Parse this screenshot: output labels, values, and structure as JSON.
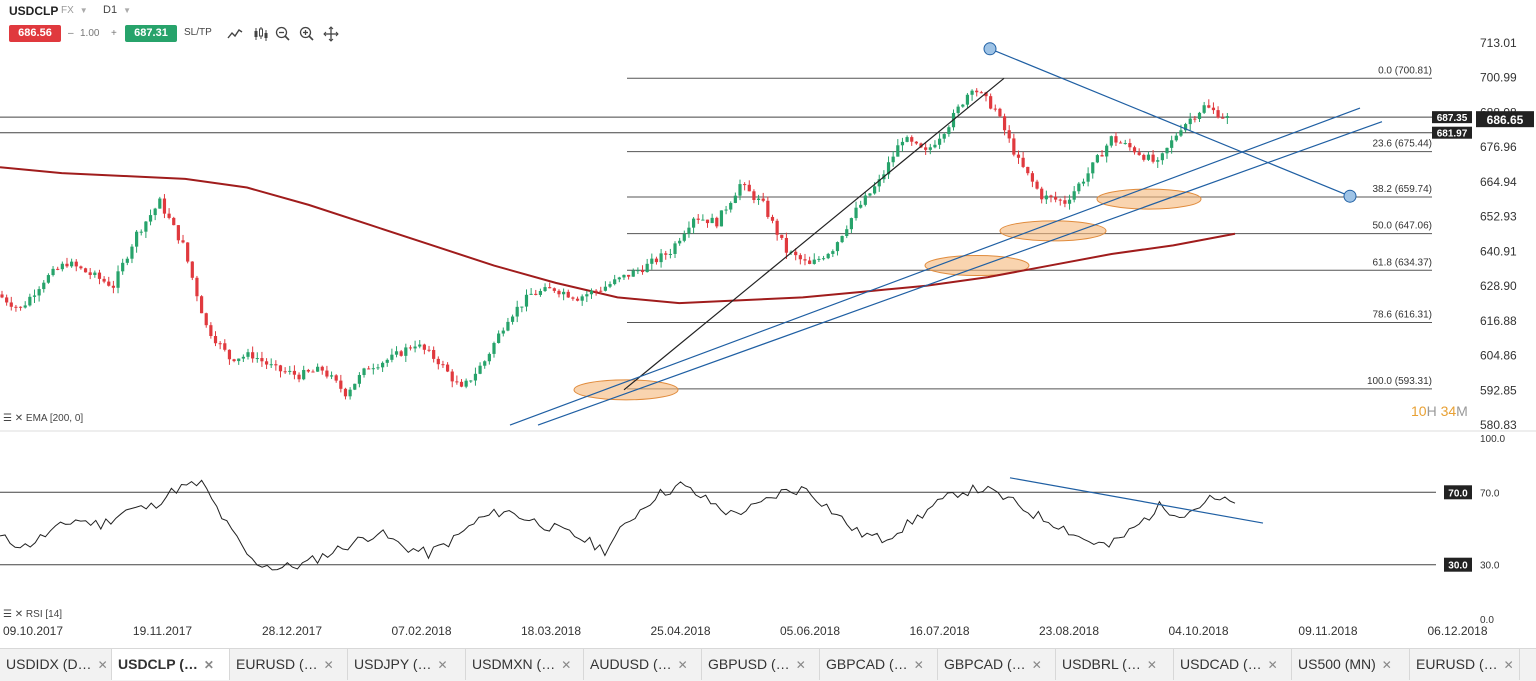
{
  "header": {
    "symbol": "USDCLP",
    "market": "FX",
    "timeframe": "D1",
    "sell_price": "686.56",
    "qty_minus": "–",
    "qty": "1.00",
    "qty_plus": "+",
    "buy_price": "687.31",
    "sltp_label": "SL/TP",
    "tools": [
      "line-chart-icon",
      "candles-icon",
      "zoom-out-icon",
      "zoom-in-icon",
      "crosshair-icon"
    ]
  },
  "countdown": {
    "h": "10",
    "h_unit": "H",
    "m": "34",
    "m_unit": "M"
  },
  "indicators": {
    "ema_label": "EMA [200, 0]",
    "rsi_label": "RSI [14]"
  },
  "tabs": [
    "USDIDX (D…",
    "USDCLP (…",
    "EURUSD (…",
    "USDJPY (…",
    "USDMXN (…",
    "AUDUSD (…",
    "GBPUSD (…",
    "GBPCAD (…",
    "GBPCAD (…",
    "USDBRL (…",
    "USDCAD (…",
    "US500 (MN)",
    "EURUSD (…"
  ],
  "active_tab": 1,
  "colors": {
    "bull": "#27a36b",
    "bear": "#e0393e",
    "ema": "#a01c1c",
    "trend": "#1f5fa3",
    "fib": "#555555",
    "zone_fill": "#f5b87a",
    "zone_stroke": "#e08b3c"
  },
  "chart_data": [
    {
      "type": "candlestick",
      "symbol": "USDCLP",
      "timeframe": "D1",
      "x_tick_labels": [
        "09.10.2017",
        "19.11.2017",
        "28.12.2017",
        "07.02.2018",
        "18.03.2018",
        "25.04.2018",
        "05.06.2018",
        "16.07.2018",
        "23.08.2018",
        "04.10.2018",
        "09.11.2018",
        "06.12.2018"
      ],
      "y_tick_labels": [
        "713.01",
        "700.99",
        "688.98",
        "676.96",
        "664.94",
        "652.93",
        "640.91",
        "628.90",
        "616.88",
        "604.86",
        "592.85",
        "580.83"
      ],
      "ylim": [
        580.83,
        713.01
      ],
      "current_price_label": "686.65",
      "price_tags": [
        "687.35",
        "681.97"
      ],
      "horizontal_lines": [
        687.35,
        681.97
      ],
      "fibonacci": {
        "levels": [
          {
            "label": "0.0 (700.81)",
            "price": 700.81
          },
          {
            "label": "23.6 (675.44)",
            "price": 675.44
          },
          {
            "label": "38.2 (659.74)",
            "price": 659.74
          },
          {
            "label": "50.0 (647.06)",
            "price": 647.06
          },
          {
            "label": "61.8 (634.37)",
            "price": 634.37
          },
          {
            "label": "78.6 (616.31)",
            "price": 616.31
          },
          {
            "label": "100.0 (593.31)",
            "price": 593.31
          }
        ]
      },
      "ema_200": [
        670,
        668,
        667,
        666,
        663,
        657,
        650,
        643,
        636,
        630,
        625,
        623,
        624,
        625,
        627,
        629,
        632,
        636,
        640,
        643,
        647
      ],
      "price_path_closes": [
        626,
        621,
        631,
        637,
        633,
        629,
        647,
        658,
        643,
        615,
        604,
        605,
        600,
        598,
        600,
        592,
        601,
        604,
        609,
        603,
        593,
        603,
        618,
        626,
        628,
        625,
        628,
        632,
        636,
        641,
        653,
        651,
        664,
        657,
        641,
        636,
        642,
        655,
        665,
        680,
        675,
        685,
        698,
        690,
        672,
        660,
        658,
        668,
        680,
        676,
        671,
        684,
        691,
        687
      ]
    },
    {
      "type": "line",
      "name": "RSI [14]",
      "ylim": [
        0,
        100
      ],
      "y_tick_labels": [
        "100.0",
        "70.0",
        "30.0",
        "0.0"
      ],
      "reference_levels": [
        {
          "label": "70.0",
          "value": 70
        },
        {
          "label": "30.0",
          "value": 30
        }
      ],
      "values": [
        45,
        40,
        48,
        55,
        52,
        60,
        62,
        72,
        75,
        52,
        32,
        28,
        30,
        36,
        42,
        48,
        40,
        36,
        44,
        55,
        60,
        55,
        50,
        45,
        38,
        55,
        68,
        74,
        66,
        58,
        62,
        70,
        72,
        60,
        48,
        44,
        52,
        62,
        70,
        72,
        66,
        58,
        52,
        44,
        40,
        50,
        62,
        58,
        66,
        64
      ]
    }
  ]
}
